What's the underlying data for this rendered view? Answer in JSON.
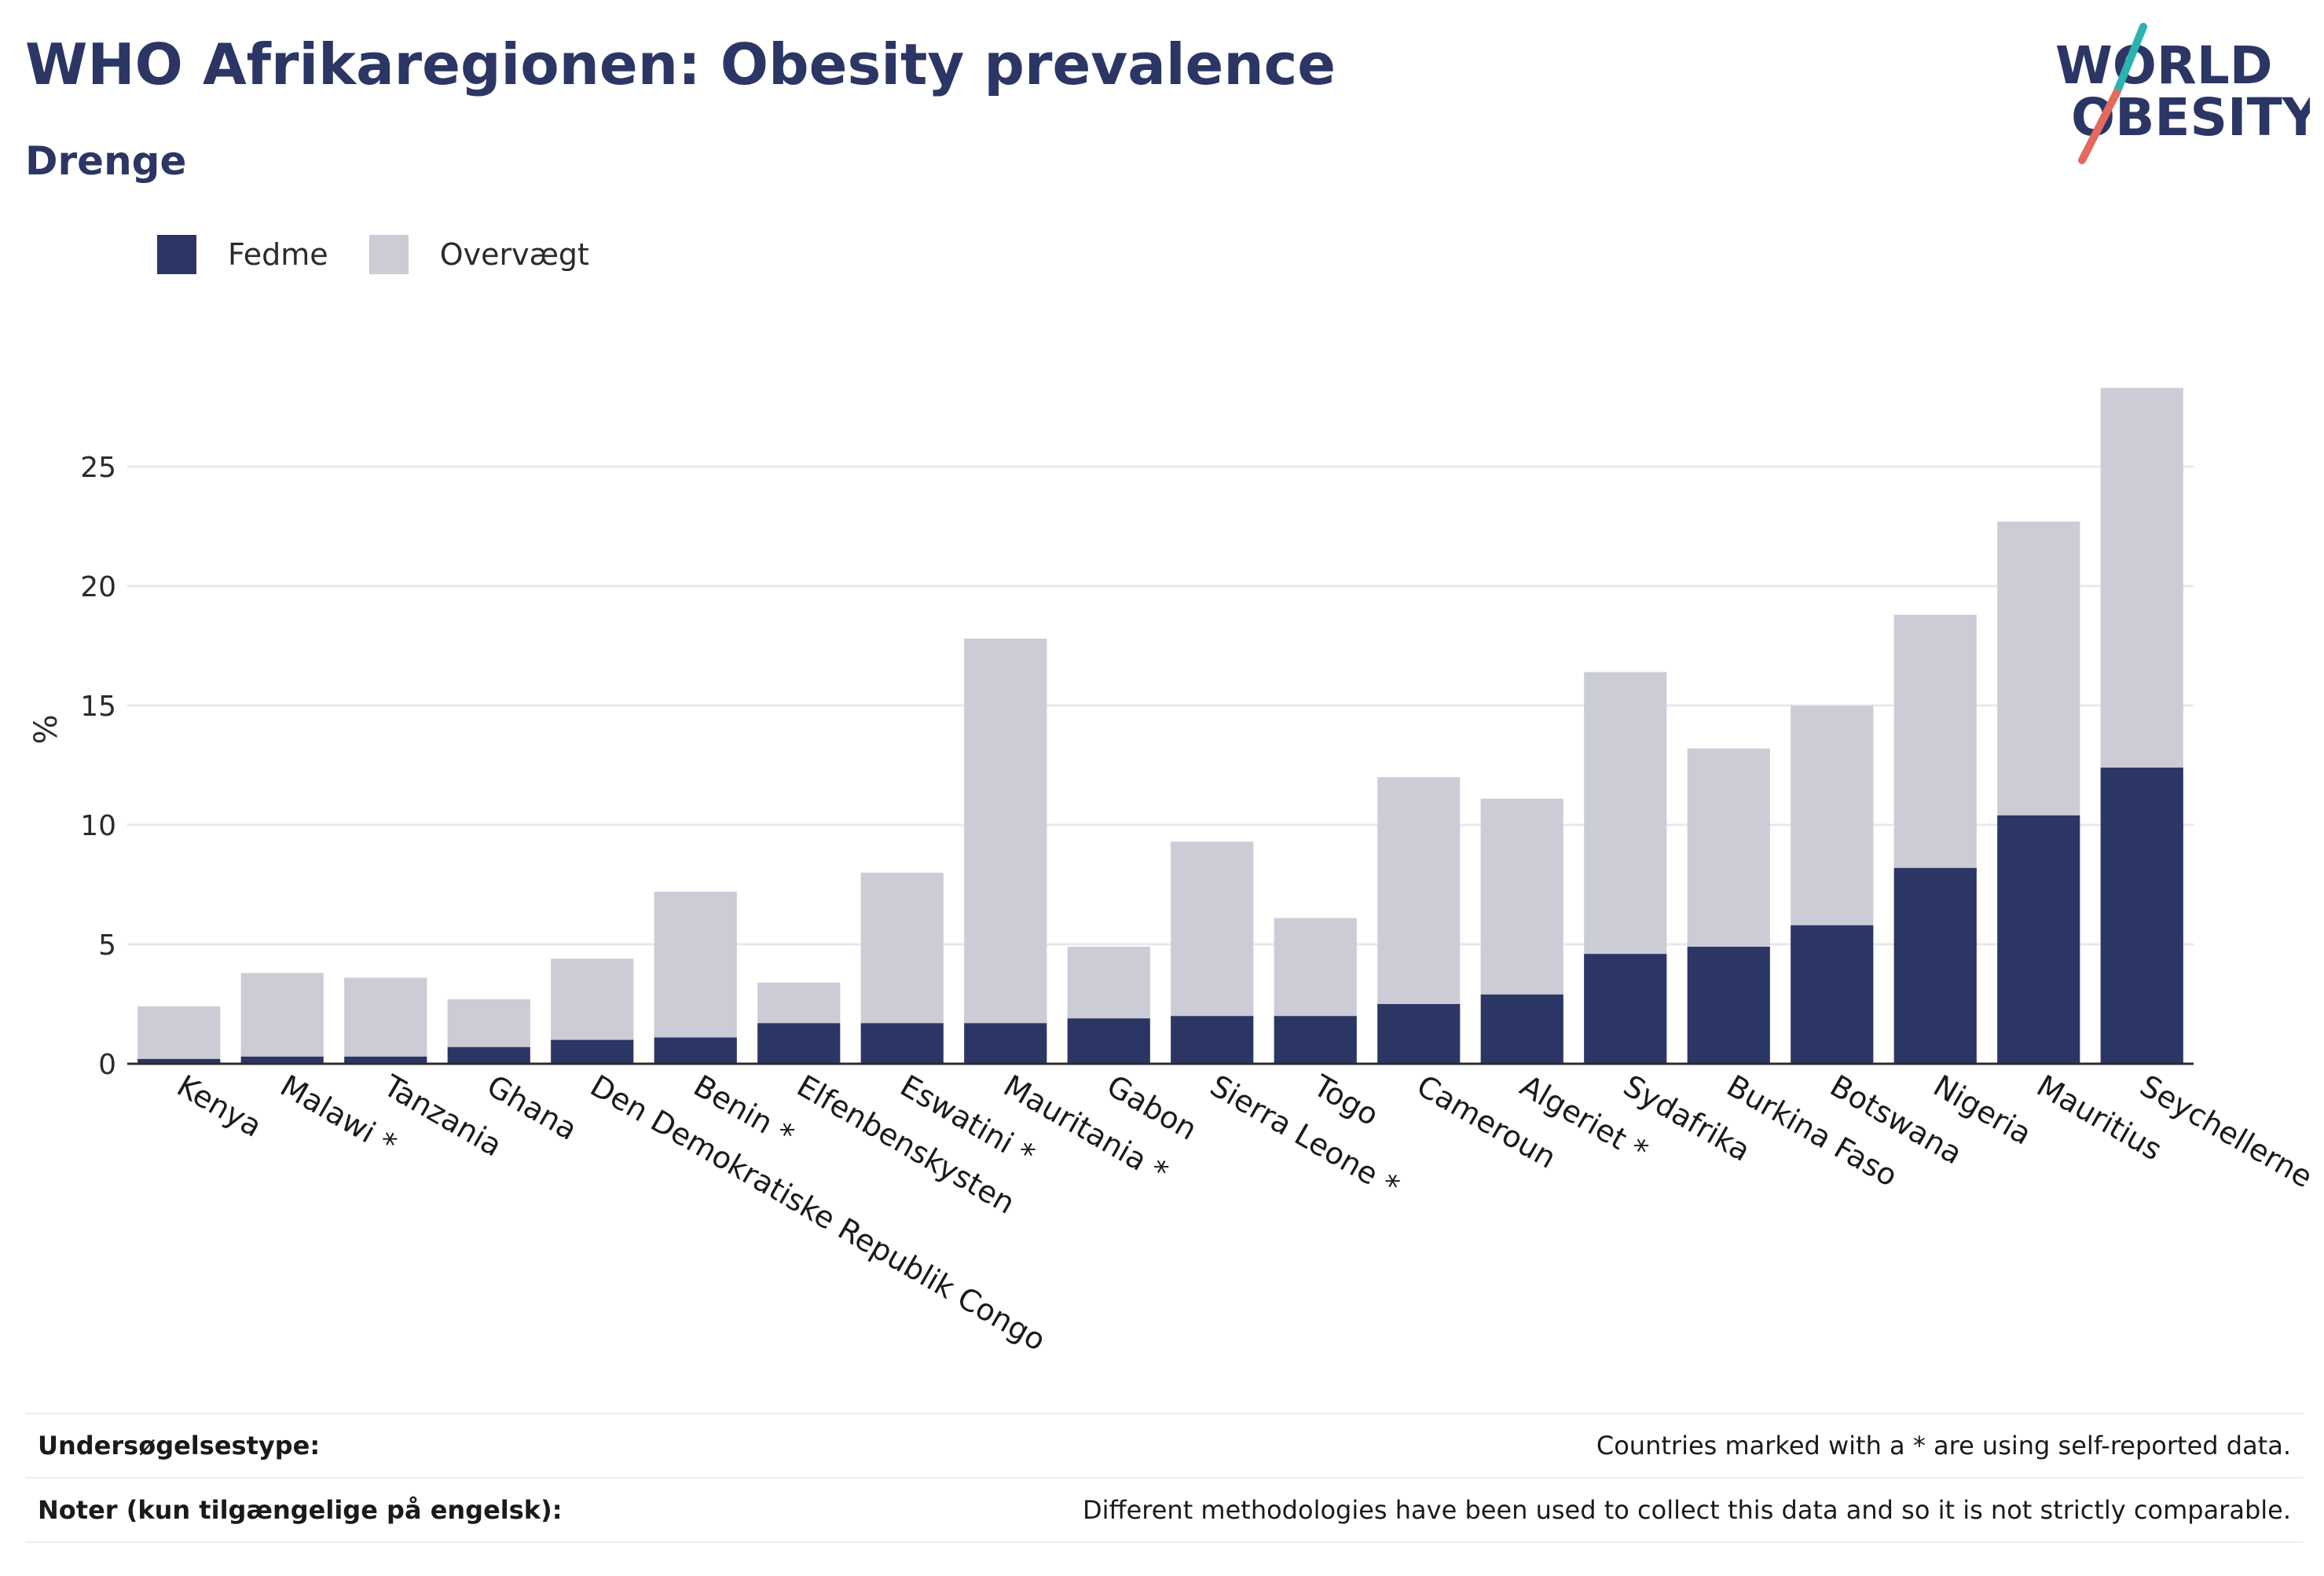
{
  "header": {
    "title": "WHO Afrikaregionen: Obesity prevalence",
    "subtitle": "Drenge"
  },
  "logo": {
    "line1": "WORLD",
    "line2": "OBESITY",
    "accent_teal": "#2bb3b1",
    "accent_coral": "#e36a5c"
  },
  "colors": {
    "obesity": "#2b3665",
    "overweight": "#cbccd6",
    "text_dark": "#2b3665"
  },
  "legend": [
    {
      "label": "Fedme",
      "color": "#2b3665"
    },
    {
      "label": "Overvægt",
      "color": "#cbccd6"
    }
  ],
  "chart_data": {
    "type": "bar",
    "stacked": true,
    "categories": [
      "Kenya",
      "Malawi *",
      "Tanzania",
      "Ghana",
      "Den Demokratiske Republik Congo",
      "Benin *",
      "Elfenbenskysten",
      "Eswatini *",
      "Mauritania *",
      "Gabon",
      "Sierra Leone *",
      "Togo",
      "Cameroun",
      "Algeriet *",
      "Sydafrika",
      "Burkina Faso",
      "Botswana",
      "Nigeria",
      "Mauritius",
      "Seychellerne"
    ],
    "series": [
      {
        "name": "Fedme",
        "values": [
          0.2,
          0.3,
          0.3,
          0.7,
          1.0,
          1.1,
          1.7,
          1.7,
          1.7,
          1.9,
          2.0,
          2.0,
          2.5,
          2.9,
          4.6,
          4.9,
          5.8,
          8.2,
          10.4,
          12.4
        ]
      },
      {
        "name": "Overvægt",
        "values": [
          2.2,
          3.5,
          3.3,
          2.0,
          3.4,
          6.1,
          1.7,
          6.3,
          16.1,
          3.0,
          7.3,
          4.1,
          9.5,
          8.2,
          11.8,
          8.3,
          9.2,
          10.6,
          12.3,
          15.9
        ]
      }
    ],
    "xlabel": "",
    "ylabel": "%",
    "ylim": [
      0,
      29
    ],
    "yticks": [
      0,
      5,
      10,
      15,
      20,
      25
    ],
    "grid": true,
    "legend_position": "top-left"
  },
  "footer": {
    "survey_label": "Undersøgelsestype:",
    "survey_value": "Countries marked with a * are using self-reported data.",
    "notes_label": "Noter (kun tilgængelige på engelsk):",
    "notes_value": "Different methodologies have been used to collect this data and so it is not strictly comparable."
  }
}
